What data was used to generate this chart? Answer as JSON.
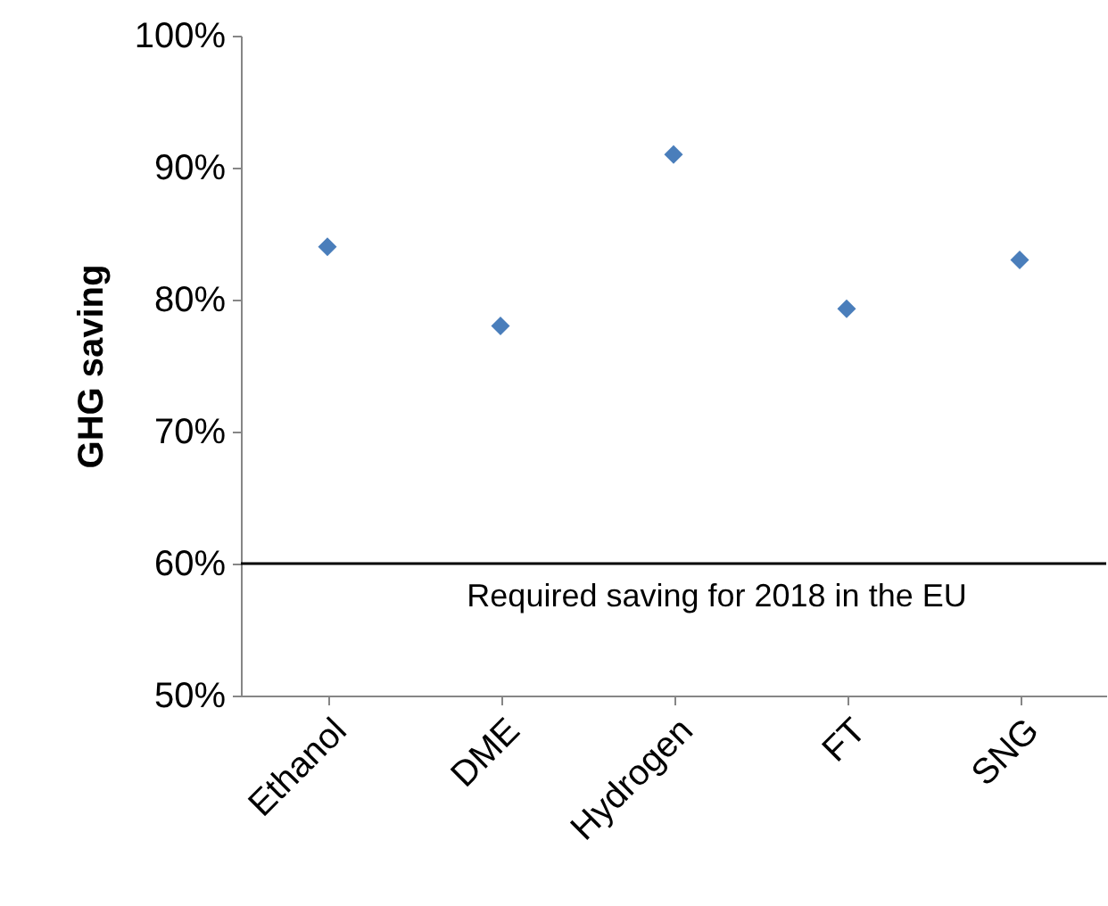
{
  "chart_data": {
    "type": "scatter",
    "ylabel": "GHG saving",
    "categories": [
      "Ethanol",
      "DME",
      "Hydrogen",
      "FT",
      "SNG"
    ],
    "series": [
      {
        "color": "#4a7ebb",
        "values": [
          84,
          78,
          91,
          79.3,
          83
        ]
      }
    ],
    "ylim": [
      50,
      100
    ],
    "yticks": [
      {
        "value": 50,
        "label": "50%"
      },
      {
        "value": 60,
        "label": "60%"
      },
      {
        "value": 70,
        "label": "70%"
      },
      {
        "value": 80,
        "label": "80%"
      },
      {
        "value": 90,
        "label": "90%"
      },
      {
        "value": 100,
        "label": "100%"
      }
    ],
    "ref_lines": [
      {
        "axis": "y",
        "value": 60,
        "label": "Required saving for 2018 in the EU",
        "color": "#000000"
      }
    ],
    "grid": false,
    "marker": "diamond"
  }
}
